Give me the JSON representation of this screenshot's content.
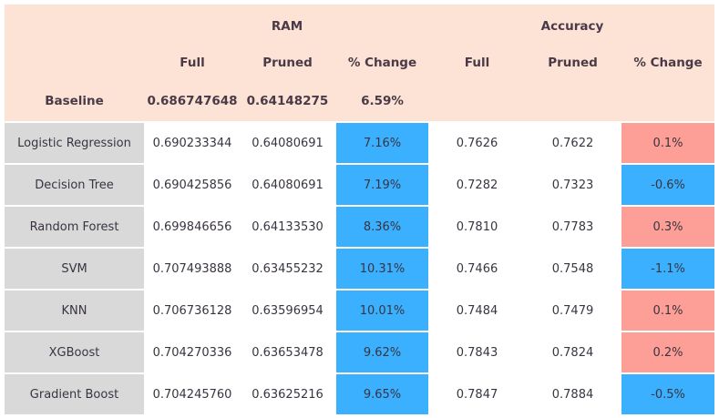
{
  "table": {
    "groups": [
      "RAM",
      "Accuracy"
    ],
    "columns": [
      "Full",
      "Pruned",
      "% Change",
      "Full",
      "Pruned",
      "% Change"
    ],
    "baseline": [
      "Baseline",
      "0.686747648",
      "0.64148275",
      "6.59%"
    ],
    "rows": [
      [
        "Logistic Regression",
        "0.690233344",
        "0.64080691",
        "7.16%",
        "0.7626",
        "0.7622",
        "0.1%"
      ],
      [
        "Decision Tree",
        "0.690425856",
        "0.64080691",
        "7.19%",
        "0.7282",
        "0.7323",
        "-0.6%"
      ],
      [
        "Random Forest",
        "0.699846656",
        "0.64133530",
        "8.36%",
        "0.7810",
        "0.7783",
        "0.3%"
      ],
      [
        "SVM",
        "0.707493888",
        "0.63455232",
        "10.31%",
        "0.7466",
        "0.7548",
        "-1.1%"
      ],
      [
        "KNN",
        "0.706736128",
        "0.63596954",
        "10.01%",
        "0.7484",
        "0.7479",
        "0.1%"
      ],
      [
        "XGBoost",
        "0.704270336",
        "0.63653478",
        "9.62%",
        "0.7843",
        "0.7824",
        "0.2%"
      ],
      [
        "Gradient Boost",
        "0.704245760",
        "0.63625216",
        "9.65%",
        "0.7847",
        "0.7884",
        "-0.5%"
      ]
    ]
  }
}
